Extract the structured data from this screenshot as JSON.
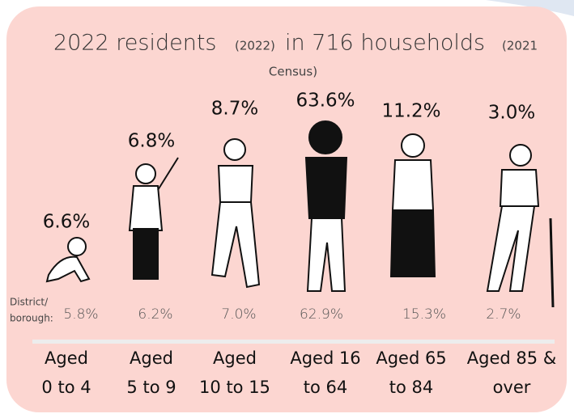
{
  "header": {
    "title_main": "2022 residents",
    "title_year": "(2022)",
    "title_households": "in 716 households",
    "title_census_1": "(2021",
    "title_census_2": "Census)"
  },
  "district_label": [
    "District/",
    "borough:"
  ],
  "groups": [
    {
      "local": "6.6%",
      "district": "5.8%",
      "label": [
        "Aged",
        "0 to 4"
      ]
    },
    {
      "local": "6.8%",
      "district": "6.2%",
      "label": [
        "Aged",
        "5 to 9"
      ]
    },
    {
      "local": "8.7%",
      "district": "7.0%",
      "label": [
        "Aged",
        "10 to 15"
      ]
    },
    {
      "local": "63.6%",
      "district": "62.9%",
      "label": [
        "Aged 16",
        "to 64"
      ]
    },
    {
      "local": "11.2%",
      "district": "15.3%",
      "label": [
        "Aged 65",
        "to 84"
      ]
    },
    {
      "local": "3.0%",
      "district": "2.7%",
      "label": [
        "Aged 85 &",
        "over"
      ]
    }
  ]
}
